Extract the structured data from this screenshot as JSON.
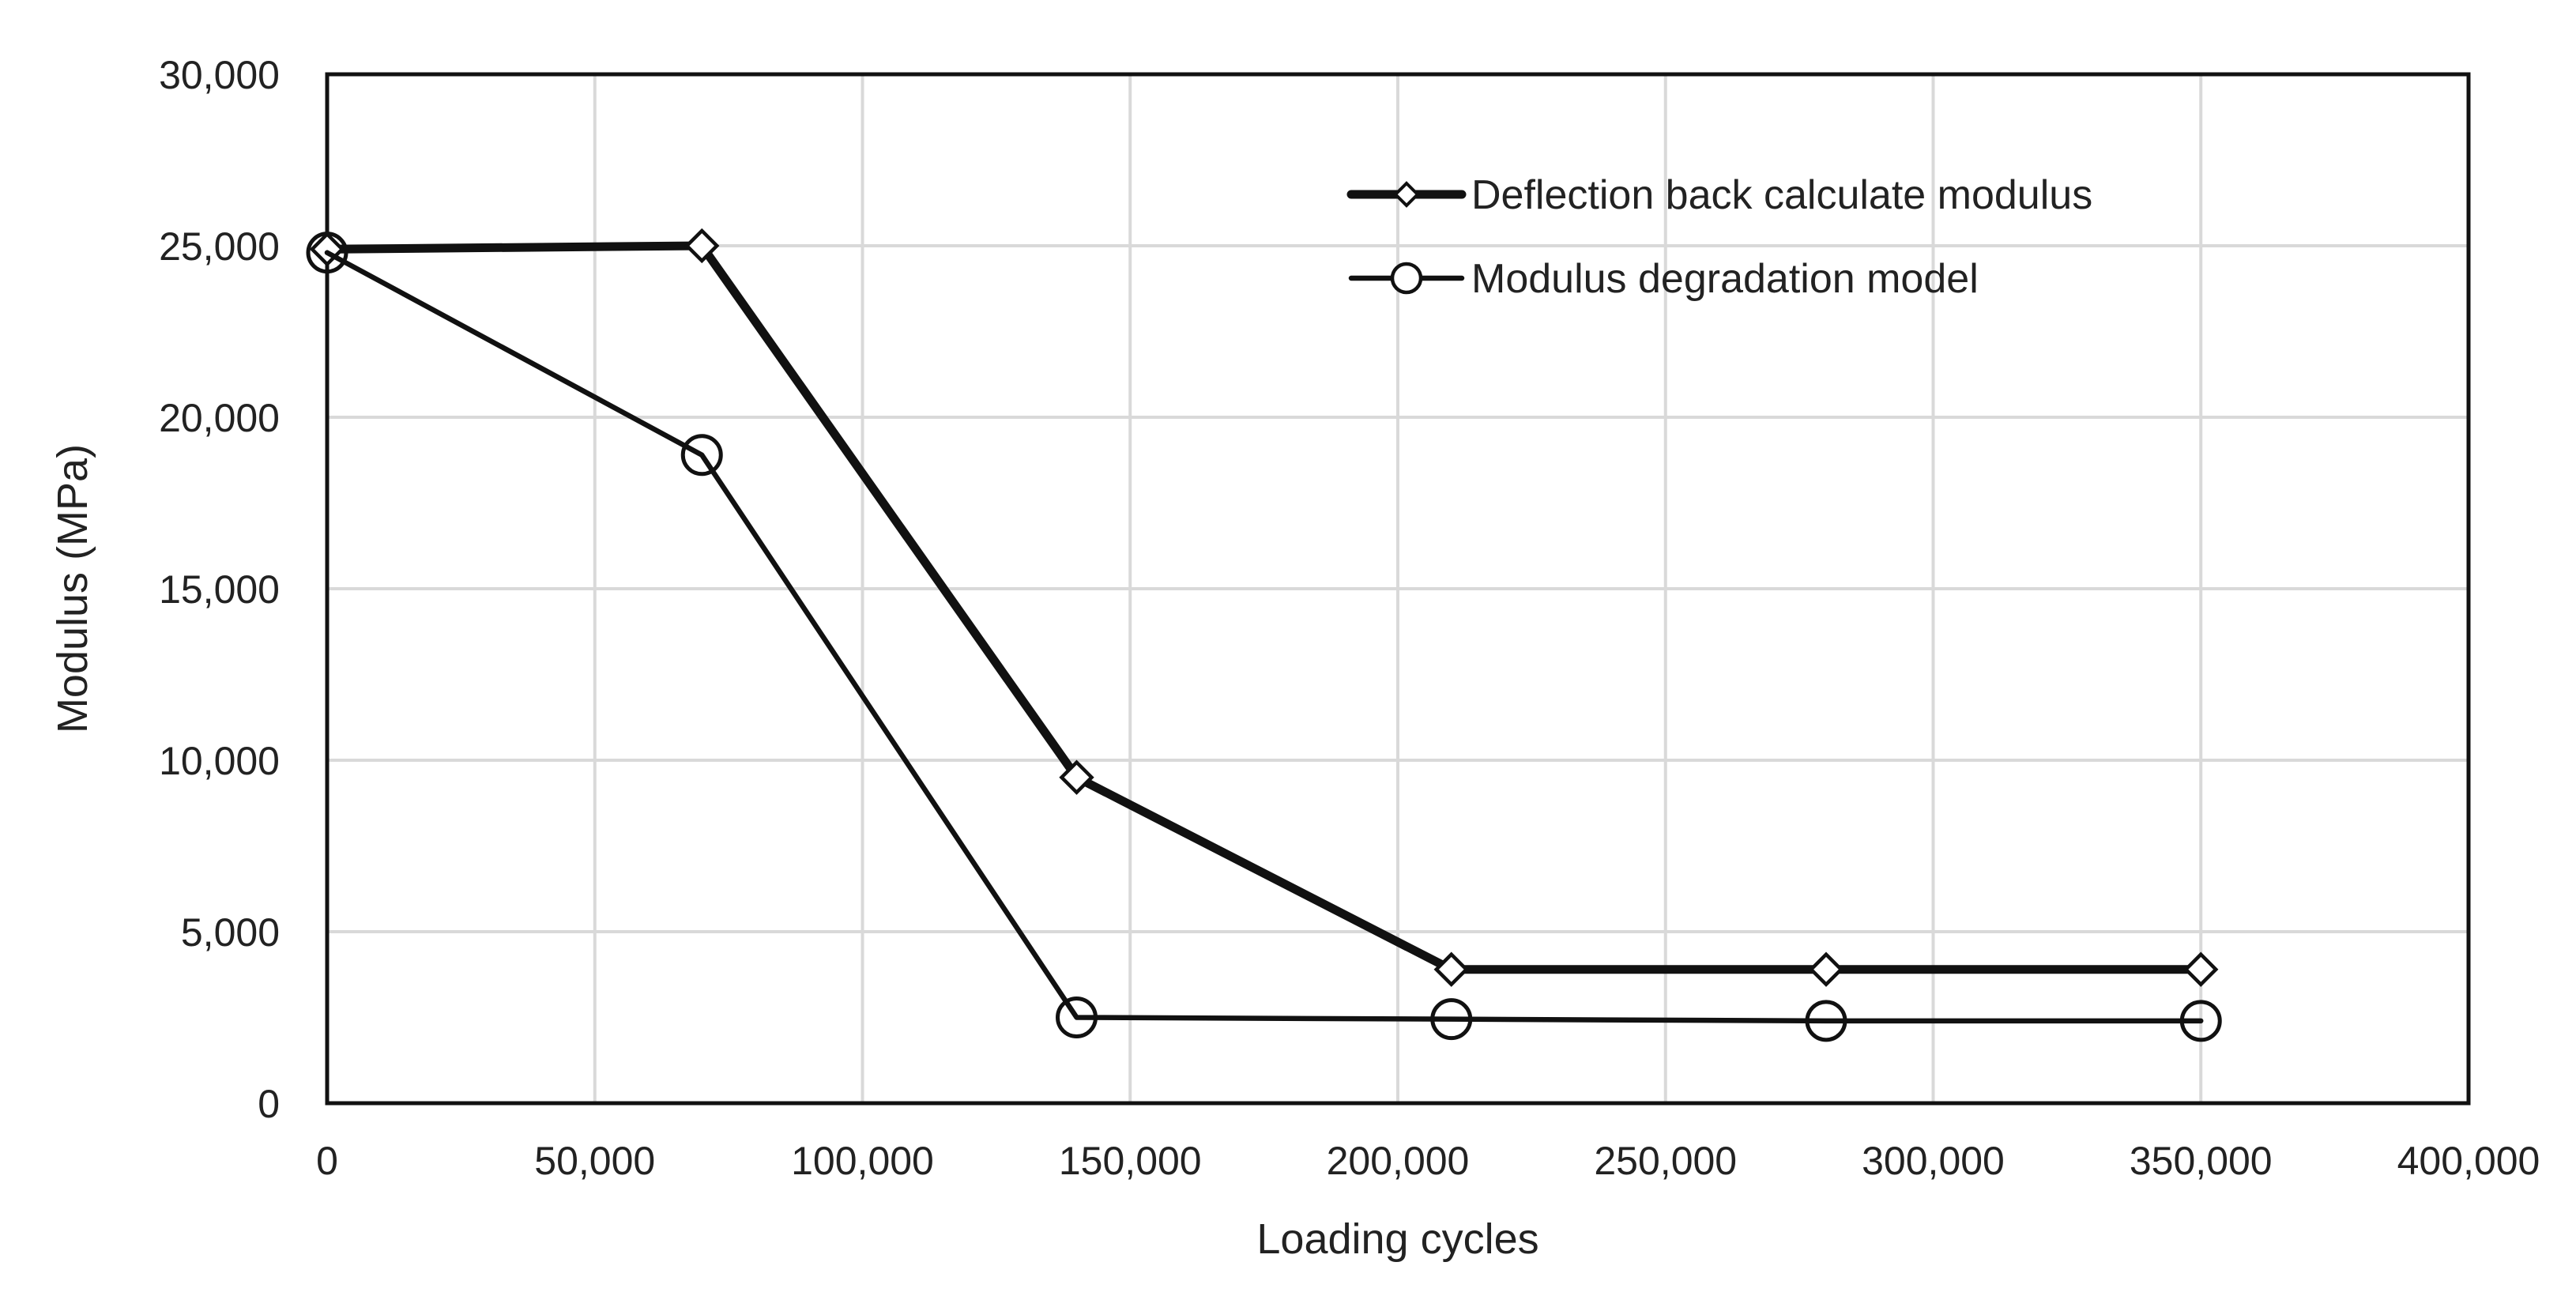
{
  "chart_data": {
    "type": "line",
    "title": "",
    "xlabel": "Loading cycles",
    "ylabel": "Modulus (MPa)",
    "xlim": [
      0,
      400000
    ],
    "ylim": [
      0,
      30000
    ],
    "x_ticks": [
      0,
      50000,
      100000,
      150000,
      200000,
      250000,
      300000,
      350000,
      400000
    ],
    "x_tick_labels": [
      "0",
      "50,000",
      "100,000",
      "150,000",
      "200,000",
      "250,000",
      "300,000",
      "350,000",
      "400,000"
    ],
    "y_ticks": [
      0,
      5000,
      10000,
      15000,
      20000,
      25000,
      30000
    ],
    "y_tick_labels": [
      "0",
      "5,000",
      "10,000",
      "15,000",
      "20,000",
      "25,000",
      "30,000"
    ],
    "grid": true,
    "legend_position": "top-right",
    "series": [
      {
        "name": "Deflection back calculate modulus",
        "marker": "diamond",
        "line": "thick",
        "color": "#111111",
        "x": [
          0,
          70000,
          140000,
          210000,
          280000,
          350000
        ],
        "y": [
          24900,
          25000,
          9500,
          3900,
          3900,
          3900
        ]
      },
      {
        "name": "Modulus degradation model",
        "marker": "circle",
        "line": "thin",
        "color": "#111111",
        "x": [
          0,
          70000,
          140000,
          210000,
          280000,
          350000
        ],
        "y": [
          24800,
          18900,
          2500,
          2450,
          2400,
          2400
        ]
      }
    ]
  }
}
